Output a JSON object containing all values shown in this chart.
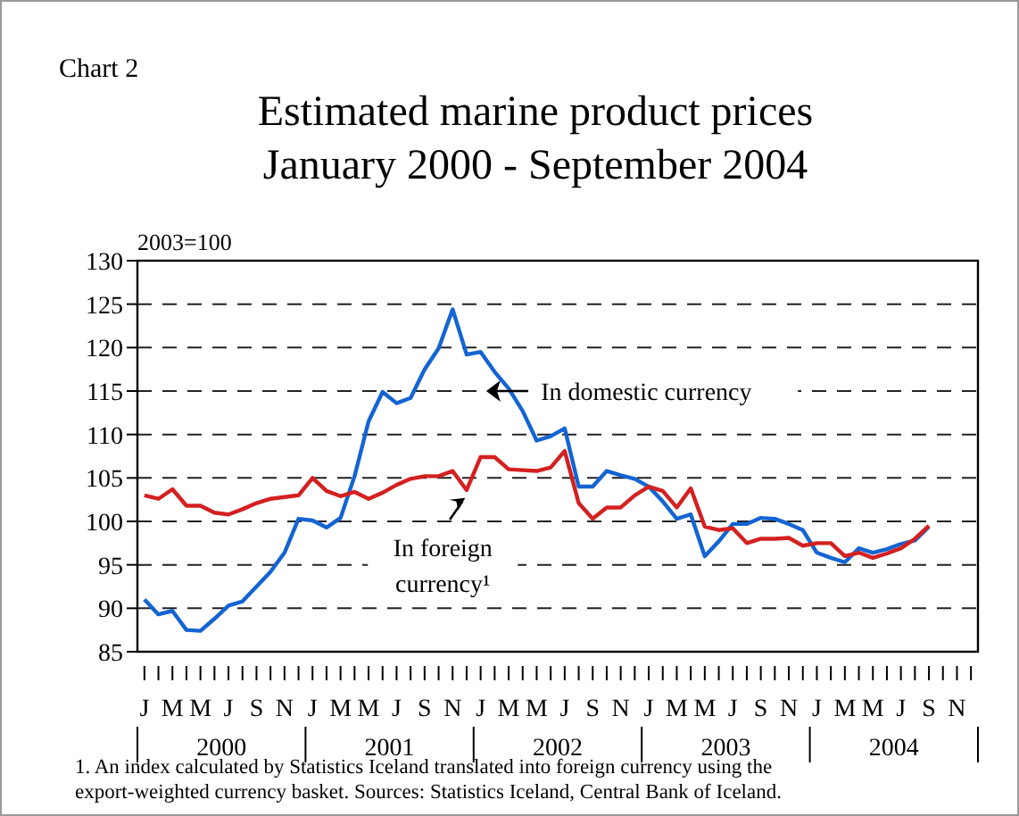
{
  "chart_data": {
    "type": "line",
    "title": "Estimated marine product prices\nJanuary 2000 - September 2004",
    "ylabel": "2003=100",
    "annotations": [
      "Chart 2",
      "2000",
      "2001",
      "2002",
      "2003",
      "2004",
      "1. An index calculated by Statistics Iceland translated into foreign currency using the export-weighted currency basket.  Sources: Statistics Iceland, Central Bank of Iceland."
    ],
    "categories": [
      "J",
      null,
      "M",
      null,
      "M",
      null,
      "J",
      null,
      "S",
      null,
      "N",
      null,
      "J",
      null,
      "M",
      null,
      "M",
      null,
      "J",
      null,
      "S",
      null,
      "N",
      null,
      "J",
      null,
      "M",
      null,
      "M",
      null,
      "J",
      null,
      "S",
      null,
      "N",
      null,
      "J",
      null,
      "M",
      null,
      "M",
      null,
      "J",
      null,
      "S",
      null,
      "N",
      null,
      "J",
      null,
      "M",
      null,
      "M",
      null,
      "J",
      null,
      "S",
      null,
      "N",
      null
    ],
    "series": [
      {
        "name": "In domestic currency",
        "color": "#1464d2",
        "values": [
          91.0,
          89.3,
          89.7,
          87.5,
          87.4,
          88.8,
          90.3,
          90.8,
          92.5,
          94.2,
          96.4,
          100.3,
          100.1,
          99.3,
          100.4,
          105.2,
          111.5,
          114.9,
          113.6,
          114.2,
          117.5,
          119.9,
          124.4,
          119.2,
          119.5,
          117.2,
          115.3,
          112.7,
          109.3,
          109.8,
          110.7,
          104.0,
          104.0,
          105.8,
          105.3,
          104.9,
          104.0,
          102.3,
          100.3,
          100.8,
          96.0,
          97.7,
          99.7,
          99.7,
          100.4,
          100.3,
          99.7,
          99.0,
          96.4,
          95.8,
          95.3,
          96.9,
          96.4,
          96.8,
          97.4,
          97.8,
          99.4,
          null,
          null,
          null
        ]
      },
      {
        "name": "In foreign currency¹",
        "color": "#d42020",
        "values": [
          103.0,
          102.6,
          103.7,
          101.8,
          101.8,
          101.0,
          100.8,
          101.4,
          102.1,
          102.6,
          102.8,
          103.0,
          105.0,
          103.5,
          102.9,
          103.4,
          102.6,
          103.3,
          104.2,
          104.9,
          105.2,
          105.2,
          105.8,
          103.6,
          107.4,
          107.4,
          106.0,
          105.9,
          105.8,
          106.2,
          108.1,
          102.1,
          100.3,
          101.6,
          101.6,
          103.0,
          104.0,
          103.5,
          101.6,
          103.8,
          99.4,
          99.0,
          99.2,
          97.5,
          98.0,
          98.0,
          98.1,
          97.2,
          97.5,
          97.5,
          96.0,
          96.4,
          95.8,
          96.3,
          96.9,
          98.0,
          99.5,
          null,
          null,
          null
        ]
      }
    ],
    "ylim": [
      85,
      130
    ],
    "yticks": [
      85,
      90,
      95,
      100,
      105,
      110,
      115,
      120,
      125,
      130
    ],
    "grid": "y",
    "marker": "none",
    "line_style": "solid"
  }
}
